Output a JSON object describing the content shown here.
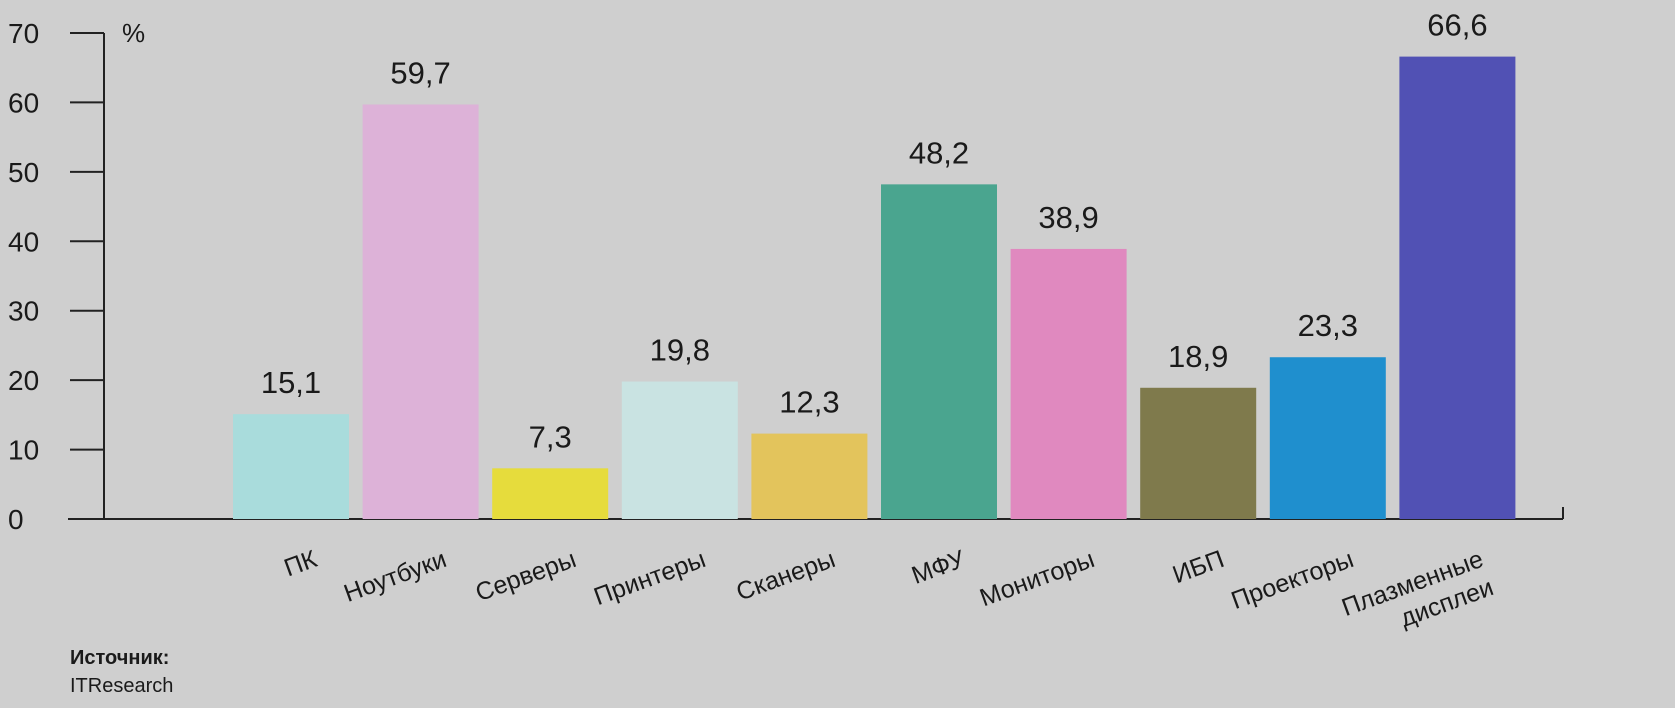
{
  "chart_data": {
    "type": "bar",
    "categories": [
      "ПК",
      "Ноутбуки",
      "Серверы",
      "Принтеры",
      "Сканеры",
      "МФУ",
      "Мониторы",
      "ИБП",
      "Проекторы",
      "Плазменные дисплеи"
    ],
    "category_lines": [
      [
        "ПК"
      ],
      [
        "Ноутбуки"
      ],
      [
        "Серверы"
      ],
      [
        "Принтеры"
      ],
      [
        "Сканеры"
      ],
      [
        "МФУ"
      ],
      [
        "Мониторы"
      ],
      [
        "ИБП"
      ],
      [
        "Проекторы"
      ],
      [
        "Плазменные",
        "дисплеи"
      ]
    ],
    "values": [
      15.1,
      59.7,
      7.3,
      19.8,
      12.3,
      48.2,
      38.9,
      18.9,
      23.3,
      66.6
    ],
    "value_labels": [
      "15,1",
      "59,7",
      "7,3",
      "19,8",
      "12,3",
      "48,2",
      "38,9",
      "18,9",
      "23,3",
      "66,6"
    ],
    "colors": [
      "#a9dcdc",
      "#ddb2d8",
      "#e6dc3c",
      "#c9e3e2",
      "#e3c45c",
      "#4aa58f",
      "#e089bf",
      "#7f7a4c",
      "#1f8fce",
      "#5151b4"
    ],
    "yticks": [
      0,
      10,
      20,
      30,
      40,
      50,
      60,
      70
    ],
    "ylim": [
      0,
      70
    ],
    "unit": "%",
    "grid": false
  },
  "source": {
    "title": "Источник:",
    "name": "ITResearch"
  }
}
